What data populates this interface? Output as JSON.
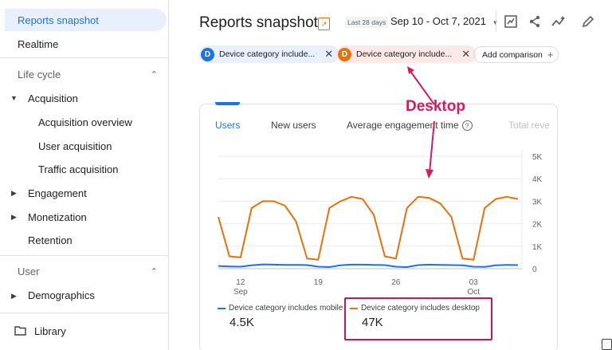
{
  "sidebar": {
    "active": "Reports snapshot",
    "realtime": "Realtime",
    "section_lifecycle": "Life cycle",
    "acquisition": "Acquisition",
    "acquisition_items": [
      "Acquisition overview",
      "User acquisition",
      "Traffic acquisition"
    ],
    "engagement": "Engagement",
    "monetization": "Monetization",
    "retention": "Retention",
    "section_user": "User",
    "demographics": "Demographics",
    "library": "Library"
  },
  "header": {
    "title": "Reports snapshot",
    "range_label": "Last 28 days",
    "date_range": "Sep 10 - Oct 7, 2021"
  },
  "chips": {
    "blue_letter": "D",
    "blue_label": "Device category include...",
    "orange_letter": "D",
    "orange_label": "Device category include...",
    "add_comparison": "Add comparison"
  },
  "card": {
    "tabs": [
      "Users",
      "New users",
      "Average engagement time",
      "Total reve"
    ],
    "help_glyph": "?"
  },
  "chart_data": {
    "type": "line",
    "x": [
      "Sep 10",
      "Sep 11",
      "Sep 12",
      "Sep 13",
      "Sep 14",
      "Sep 15",
      "Sep 16",
      "Sep 17",
      "Sep 18",
      "Sep 19",
      "Sep 20",
      "Sep 21",
      "Sep 22",
      "Sep 23",
      "Sep 24",
      "Sep 25",
      "Sep 26",
      "Sep 27",
      "Sep 28",
      "Sep 29",
      "Sep 30",
      "Oct 1",
      "Oct 2",
      "Oct 3",
      "Oct 4",
      "Oct 5",
      "Oct 6",
      "Oct 7"
    ],
    "x_ticks": [
      {
        "day": "12",
        "month": "Sep",
        "index": 2
      },
      {
        "day": "19",
        "month": "",
        "index": 9
      },
      {
        "day": "26",
        "month": "",
        "index": 16
      },
      {
        "day": "03",
        "month": "Oct",
        "index": 23
      }
    ],
    "y_ticks": [
      "5K",
      "4K",
      "3K",
      "2K",
      "1K",
      "0"
    ],
    "ylim": [
      0,
      5000
    ],
    "series": [
      {
        "name": "Device category includes mobile",
        "color": "#1a73e8",
        "values": [
          120,
          100,
          90,
          150,
          190,
          180,
          170,
          170,
          160,
          90,
          70,
          150,
          180,
          180,
          170,
          160,
          90,
          70,
          160,
          180,
          170,
          160,
          150,
          90,
          80,
          150,
          170,
          160
        ]
      },
      {
        "name": "Device category includes desktop",
        "color": "#e8710a",
        "values": [
          2300,
          550,
          500,
          2700,
          3000,
          3000,
          2800,
          2100,
          450,
          400,
          2700,
          3000,
          3200,
          3100,
          2400,
          550,
          450,
          2700,
          3200,
          3150,
          2900,
          2300,
          450,
          400,
          2700,
          3100,
          3200,
          3100
        ]
      }
    ]
  },
  "legend": {
    "mobile_label": "Device category includes mobile",
    "mobile_value": "4.5K",
    "desktop_label": "Device category includes desktop",
    "desktop_value": "47K"
  },
  "annotation": {
    "text": "Desktop",
    "color": "#d81b60"
  },
  "colors": {
    "accent": "#1a73e8",
    "desktop": "#e8710a",
    "highlight": "#c2185b"
  }
}
